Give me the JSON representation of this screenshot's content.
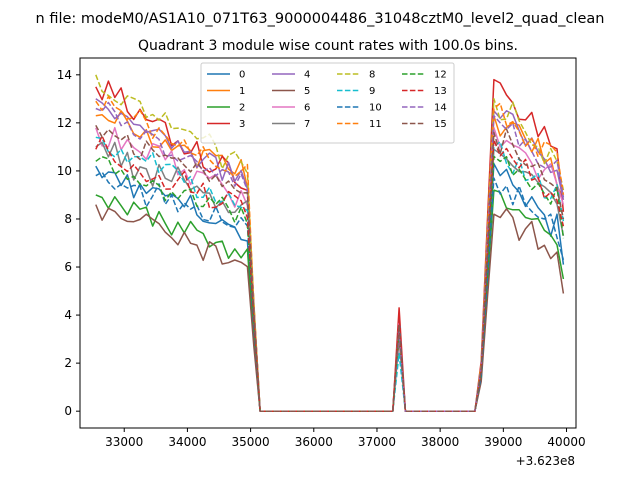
{
  "figure": {
    "suptitle": "n file: modeM0/AS1A10_071T63_9000004486_31048cztM0_level2_quad_clean",
    "title": "Quadrant 3 module wise count rates with 100.0s bins.",
    "offset_label": "+3.623e8"
  },
  "chart_data": {
    "type": "line",
    "title": "Quadrant 3 module wise count rates with 100.0s bins.",
    "xlabel": "",
    "ylabel": "",
    "x_offset": 362300000,
    "xlim": [
      32300,
      40150
    ],
    "ylim": [
      -0.7,
      14.7
    ],
    "xticks": [
      33000,
      34000,
      35000,
      36000,
      37000,
      38000,
      39000,
      40000
    ],
    "yticks": [
      0,
      2,
      4,
      6,
      8,
      10,
      12,
      14
    ],
    "grid": false,
    "legend_position": "top-center",
    "legend_columns": 4,
    "segment1": {
      "x_start": 32550,
      "x_end": 34950,
      "step": 100
    },
    "segment2": {
      "x_start": 38850,
      "x_end": 39850,
      "step": 100
    },
    "zero_region": {
      "x_start": 35150,
      "x_end": 38550
    },
    "spike": {
      "x": 37350,
      "values": [
        3.6,
        3.5,
        3.3,
        4.3,
        3.4,
        3.0,
        3.7,
        3.2,
        3.6,
        2.4,
        3.8,
        3.5,
        3.4,
        3.9,
        3.3,
        3.6
      ]
    },
    "edge_points": [
      {
        "x": 35050,
        "ratio": 0.46
      },
      {
        "x": 38650,
        "ratio": 0.15
      },
      {
        "x": 38750,
        "ratio": 0.58
      }
    ],
    "series": [
      {
        "name": "0",
        "color": "#1f77b4",
        "dash": "solid",
        "s1_start": 10.2,
        "s1_end": 7.3,
        "s2_start": 10.3,
        "s2_end": 7.6,
        "s2_last": 6.1
      },
      {
        "name": "1",
        "color": "#ff7f0e",
        "dash": "solid",
        "s1_start": 12.3,
        "s1_end": 9.8,
        "s2_start": 12.3,
        "s2_end": 10.0,
        "s2_last": 8.8
      },
      {
        "name": "2",
        "color": "#2ca02c",
        "dash": "solid",
        "s1_start": 9.0,
        "s1_end": 6.5,
        "s2_start": 9.2,
        "s2_end": 7.1,
        "s2_last": 5.5
      },
      {
        "name": "3",
        "color": "#d62728",
        "dash": "solid",
        "s1_start": 13.5,
        "s1_end": 9.6,
        "s2_start": 13.8,
        "s2_end": 10.6,
        "s2_last": 8.3
      },
      {
        "name": "4",
        "color": "#9467bd",
        "dash": "solid",
        "s1_start": 13.0,
        "s1_end": 9.3,
        "s2_start": 12.5,
        "s2_end": 10.0,
        "s2_last": 8.8
      },
      {
        "name": "5",
        "color": "#8c564b",
        "dash": "solid",
        "s1_start": 8.6,
        "s1_end": 5.9,
        "s2_start": 8.2,
        "s2_end": 6.5,
        "s2_last": 4.9
      },
      {
        "name": "6",
        "color": "#e377c2",
        "dash": "solid",
        "s1_start": 11.8,
        "s1_end": 8.8,
        "s2_start": 11.8,
        "s2_end": 9.4,
        "s2_last": 8.6
      },
      {
        "name": "7",
        "color": "#7f7f7f",
        "dash": "solid",
        "s1_start": 11.0,
        "s1_end": 8.2,
        "s2_start": 10.9,
        "s2_end": 8.8,
        "s2_last": 7.3
      },
      {
        "name": "8",
        "color": "#bcbd22",
        "dash": "dashed",
        "s1_start": 14.0,
        "s1_end": 9.9,
        "s2_start": 13.0,
        "s2_end": 10.2,
        "s2_last": 9.2
      },
      {
        "name": "9",
        "color": "#17becf",
        "dash": "dashed",
        "s1_start": 11.4,
        "s1_end": 8.4,
        "s2_start": 11.0,
        "s2_end": 8.8,
        "s2_last": 7.9
      },
      {
        "name": "10",
        "color": "#1f77b4",
        "dash": "dashed",
        "s1_start": 9.8,
        "s1_end": 7.6,
        "s2_start": 9.7,
        "s2_end": 7.5,
        "s2_last": 6.3
      },
      {
        "name": "11",
        "color": "#ff7f0e",
        "dash": "dashed",
        "s1_start": 12.9,
        "s1_end": 9.7,
        "s2_start": 12.6,
        "s2_end": 10.4,
        "s2_last": 9.0
      },
      {
        "name": "12",
        "color": "#2ca02c",
        "dash": "dashed",
        "s1_start": 10.4,
        "s1_end": 8.3,
        "s2_start": 10.6,
        "s2_end": 8.6,
        "s2_last": 7.2
      },
      {
        "name": "13",
        "color": "#d62728",
        "dash": "dashed",
        "s1_start": 10.9,
        "s1_end": 8.5,
        "s2_start": 11.3,
        "s2_end": 8.9,
        "s2_last": 7.7
      },
      {
        "name": "14",
        "color": "#9467bd",
        "dash": "dashed",
        "s1_start": 12.6,
        "s1_end": 9.4,
        "s2_start": 12.3,
        "s2_end": 9.9,
        "s2_last": 8.9
      },
      {
        "name": "15",
        "color": "#8c564b",
        "dash": "dashed",
        "s1_start": 11.9,
        "s1_end": 8.9,
        "s2_start": 11.6,
        "s2_end": 9.2,
        "s2_last": 8.0
      }
    ]
  }
}
